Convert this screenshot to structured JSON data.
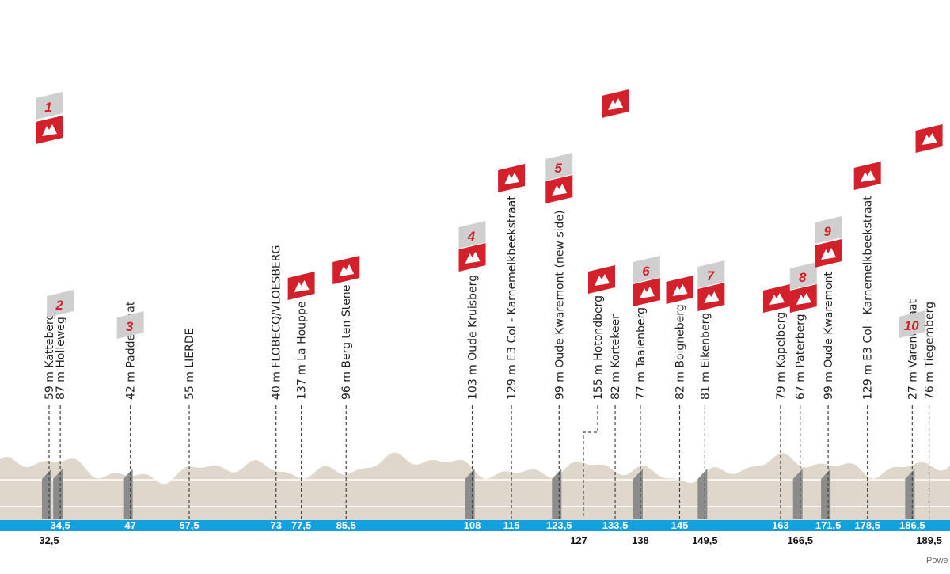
{
  "chart_data": {
    "type": "area",
    "axis": {
      "top_km_labels": [
        "34,5",
        "47",
        "57,5",
        "73",
        "77,5",
        "85,5",
        "108",
        "115",
        "123,5",
        "133,5",
        "145",
        "163",
        "171,5",
        "178,5",
        "186,5"
      ],
      "bottom_km_labels": [
        "32,5",
        "127",
        "138",
        "149,5",
        "166,5",
        "189,5"
      ]
    },
    "climbs": [
      {
        "label": "59 m Katteberg",
        "number": "1",
        "km": "32,5"
      },
      {
        "label": "87 m Holleweg",
        "number": "2",
        "km": "34,5"
      },
      {
        "label": "42 m Paddestraat",
        "number": "3",
        "km": "47"
      },
      {
        "label": "55 m LIERDE",
        "number": "",
        "km": "57,5"
      },
      {
        "label": "40 m FLOBECQ/VLOESBERG",
        "number": "",
        "km": "73"
      },
      {
        "label": "137 m La Houppe",
        "number": "",
        "km": "77,5"
      },
      {
        "label": "96 m Berg ten Stene",
        "number": "",
        "km": "85,5"
      },
      {
        "label": "103 m Oude Kruisberg",
        "number": "4",
        "km": "108"
      },
      {
        "label": "129 m E3 Col - Karnemelkbeekstraat",
        "number": "",
        "km": "115"
      },
      {
        "label": "99 m Oude Kwaremont (new side)",
        "number": "5",
        "km": "123,5"
      },
      {
        "label": "155 m Hotondberg",
        "number": "",
        "km": "127"
      },
      {
        "label": "82 m Kortekeer",
        "number": "",
        "km": "133,5"
      },
      {
        "label": "77 m Taaienberg",
        "number": "6",
        "km": "138"
      },
      {
        "label": "82 m Boigneberg",
        "number": "",
        "km": "145"
      },
      {
        "label": "81 m Eikenberg",
        "number": "7",
        "km": "149,5"
      },
      {
        "label": "79 m Kapelberg",
        "number": "",
        "km": "163"
      },
      {
        "label": "67 m Paterberg",
        "number": "8",
        "km": "166,5"
      },
      {
        "label": "99 m Oude Kwaremont",
        "number": "9",
        "km": "171,5"
      },
      {
        "label": "129 m E3 Col - Karnemelkbeekstraat",
        "number": "",
        "km": "178,5"
      },
      {
        "label": "27 m Varentstraat",
        "number": "10",
        "km": "186,5"
      },
      {
        "label": "76 m Tiegemberg",
        "number": "",
        "km": "189,5"
      }
    ],
    "colors": {
      "profile_fill": "#dfd7cc",
      "climb_band": "#8c8c8c",
      "axis_bar": "#14a0de",
      "flag_red": "#d4202a",
      "flag_grey": "#cfcfcf"
    },
    "icons": {
      "climb": "mountain-icon"
    }
  },
  "footer": {
    "powered": "Powe"
  }
}
